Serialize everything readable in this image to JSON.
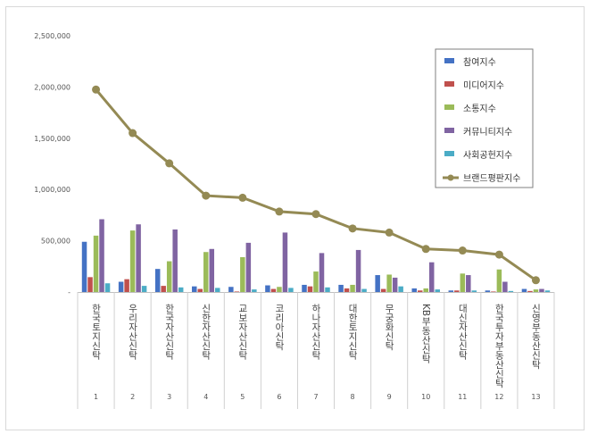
{
  "chart_data": {
    "type": "bar",
    "categories": [
      "한국토지신탁",
      "우리자산신탁",
      "한국자산신탁",
      "신한자산신탁",
      "교보자산신탁",
      "코리아신탁",
      "하나자산신탁",
      "대한토지신탁",
      "무궁화신탁",
      "KB부동산신탁",
      "대신자산신탁",
      "한국투자부동산신탁",
      "신영부동산신탁"
    ],
    "ranks": [
      "1",
      "2",
      "3",
      "4",
      "5",
      "6",
      "7",
      "8",
      "9",
      "10",
      "11",
      "12",
      "13"
    ],
    "ylim": [
      0,
      2500000
    ],
    "yticks": [
      "-",
      "500,000",
      "1,000,000",
      "1,500,000",
      "2,000,000",
      "2,500,000"
    ],
    "grid": false,
    "legend_position": "top-right",
    "series": [
      {
        "name": "참여지수",
        "type": "bar",
        "color": "#4472c4",
        "values": [
          490000,
          100000,
          225000,
          55000,
          50000,
          65000,
          70000,
          70000,
          165000,
          35000,
          15000,
          15000,
          30000
        ]
      },
      {
        "name": "미디어지수",
        "type": "bar",
        "color": "#c0504d",
        "values": [
          145000,
          125000,
          60000,
          30000,
          5000,
          30000,
          55000,
          35000,
          30000,
          15000,
          15000,
          5000,
          10000
        ]
      },
      {
        "name": "소통지수",
        "type": "bar",
        "color": "#9bbb59",
        "values": [
          550000,
          600000,
          300000,
          390000,
          340000,
          50000,
          200000,
          70000,
          170000,
          35000,
          180000,
          220000,
          25000
        ]
      },
      {
        "name": "커뮤니티지수",
        "type": "bar",
        "color": "#8064a2",
        "values": [
          710000,
          660000,
          610000,
          420000,
          480000,
          580000,
          380000,
          410000,
          140000,
          290000,
          165000,
          100000,
          30000
        ]
      },
      {
        "name": "사회공헌지수",
        "type": "bar",
        "color": "#4bacc6",
        "values": [
          85000,
          60000,
          45000,
          40000,
          25000,
          40000,
          45000,
          30000,
          55000,
          25000,
          15000,
          10000,
          15000
        ]
      },
      {
        "name": "브랜드평판지수",
        "type": "line",
        "color": "#948a54",
        "values": [
          1975000,
          1550000,
          1255000,
          940000,
          920000,
          785000,
          760000,
          620000,
          580000,
          420000,
          405000,
          365000,
          115000
        ]
      }
    ]
  }
}
